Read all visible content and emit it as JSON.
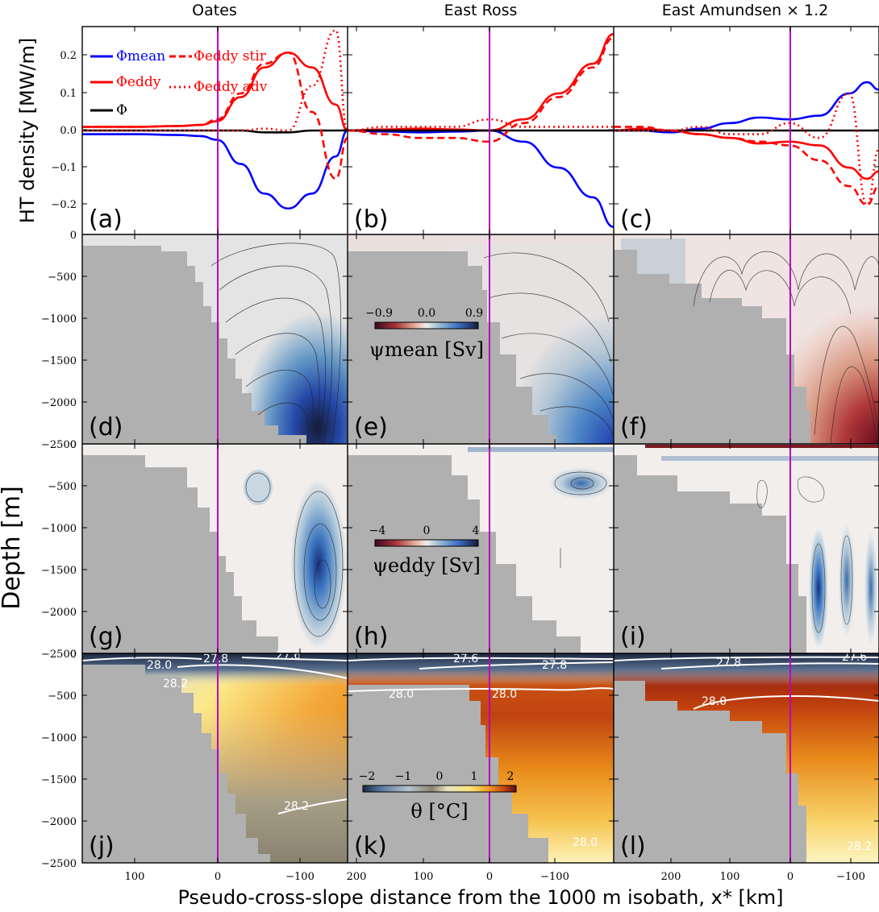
{
  "figure": {
    "col_titles": [
      "Oates",
      "East Ross",
      "East Amundsen × 1.2"
    ],
    "top_ylabel": "HT density [MW/m]",
    "depth_ylabel": "Depth [m]",
    "xlabel": "Pseudo-cross-slope distance from the 1000 m isobath, x* [km]",
    "panel_labels": [
      "(a)",
      "(b)",
      "(c)",
      "(d)",
      "(e)",
      "(f)",
      "(g)",
      "(h)",
      "(i)",
      "(j)",
      "(k)",
      "(l)"
    ],
    "top_yticks": [
      "0.2",
      "0.1",
      "0.0",
      "−0.1",
      "−0.2"
    ],
    "depth_yticks": [
      "0",
      "−500",
      "−1000",
      "−1500",
      "−2000",
      "−2500"
    ],
    "xticks_col1": [
      "100",
      "0",
      "−100"
    ],
    "xticks_col2": [
      "200",
      "100",
      "0",
      "−100"
    ],
    "xticks_col3": [
      "200",
      "100",
      "0",
      "−100"
    ],
    "legend": {
      "mean": "Φmean",
      "eddy": "Φeddy",
      "total": "Φ",
      "stir": "Φeddy stir",
      "adv": "Φeddy adv"
    },
    "colorbars": {
      "psi_mean": {
        "label": "ψmean [Sv]",
        "ticks": [
          "−0.9",
          "0.0",
          "0.9"
        ]
      },
      "psi_eddy": {
        "label": "ψeddy [Sv]",
        "ticks": [
          "−4",
          "0",
          "4"
        ]
      },
      "theta": {
        "label": "θ [°C]",
        "ticks": [
          "−2",
          "−1",
          "0",
          "1",
          "2"
        ]
      }
    },
    "isopycnals": {
      "j": [
        "27.8",
        "27.6",
        "28.0",
        "28.2",
        "28.2"
      ],
      "k": [
        "27.6",
        "27.8",
        "28.0",
        "28.0",
        "28.0"
      ],
      "l": [
        "27.8",
        "27.6",
        "28.0",
        "28.2"
      ]
    },
    "colors": {
      "mean": "#0000ff",
      "eddy": "#ff0000",
      "total": "#000000",
      "isobath": "#bb00bb",
      "bathy": "#b0b0b0"
    }
  },
  "chart_data": [
    {
      "type": "line",
      "panel": "a",
      "title": "Oates",
      "ylabel": "HT density [MW/m]",
      "xlim": [
        170,
        -165
      ],
      "ylim": [
        -0.28,
        0.28
      ],
      "x": [
        170,
        100,
        50,
        20,
        0,
        -30,
        -60,
        -90,
        -120,
        -150,
        -165
      ],
      "series": [
        {
          "name": "Φmean",
          "values": [
            -0.01,
            -0.01,
            -0.012,
            -0.015,
            -0.025,
            -0.09,
            -0.17,
            -0.21,
            -0.17,
            -0.07,
            -0.0
          ]
        },
        {
          "name": "Φeddy",
          "values": [
            0.01,
            0.01,
            0.012,
            0.015,
            0.025,
            0.09,
            0.17,
            0.21,
            0.17,
            0.07,
            0.0
          ]
        },
        {
          "name": "Φ",
          "values": [
            0.0,
            0.0,
            0.0,
            0.0,
            0.0,
            0.0,
            -0.005,
            -0.005,
            0.0,
            0.0,
            0.0
          ]
        },
        {
          "name": "Φeddy stir",
          "values": [
            0.01,
            0.01,
            0.012,
            0.015,
            0.03,
            0.1,
            0.18,
            0.21,
            0.05,
            -0.13,
            -0.02
          ]
        },
        {
          "name": "Φeddy adv",
          "values": [
            0.0,
            0.0,
            0.0,
            0.0,
            0.0,
            0.0,
            0.005,
            0.0,
            0.12,
            0.27,
            0.0
          ]
        }
      ]
    },
    {
      "type": "line",
      "panel": "b",
      "title": "East Ross",
      "xlim": [
        205,
        -180
      ],
      "ylim": [
        -0.28,
        0.28
      ],
      "x": [
        205,
        150,
        100,
        50,
        0,
        -50,
        -100,
        -150,
        -180
      ],
      "series": [
        {
          "name": "Φmean",
          "values": [
            0.0,
            -0.003,
            -0.005,
            -0.003,
            0.0,
            -0.03,
            -0.1,
            -0.18,
            -0.26
          ]
        },
        {
          "name": "Φeddy",
          "values": [
            0.0,
            0.003,
            0.005,
            0.003,
            0.0,
            0.03,
            0.1,
            0.18,
            0.26
          ]
        },
        {
          "name": "Φ",
          "values": [
            0.0,
            0.0,
            0.0,
            0.0,
            0.0,
            0.0,
            0.0,
            0.0,
            0.0
          ]
        },
        {
          "name": "Φeddy stir",
          "values": [
            0.0,
            -0.01,
            -0.02,
            -0.02,
            -0.03,
            0.02,
            0.09,
            0.17,
            0.25
          ]
        },
        {
          "name": "Φeddy adv",
          "values": [
            0.0,
            0.01,
            0.01,
            0.01,
            0.03,
            0.01,
            0.01,
            0.01,
            0.01
          ]
        }
      ]
    },
    {
      "type": "line",
      "panel": "c",
      "title": "East Amundsen × 1.2",
      "xlim": [
        295,
        -150
      ],
      "ylim": [
        -0.28,
        0.28
      ],
      "x": [
        295,
        250,
        200,
        150,
        100,
        50,
        0,
        -50,
        -100,
        -130,
        -150
      ],
      "series": [
        {
          "name": "Φmean",
          "values": [
            0.0,
            0.0,
            -0.005,
            0.005,
            0.02,
            0.035,
            0.03,
            0.04,
            0.1,
            0.13,
            0.11
          ]
        },
        {
          "name": "Φeddy",
          "values": [
            0.0,
            0.005,
            0.0,
            -0.01,
            -0.02,
            -0.035,
            -0.03,
            -0.04,
            -0.1,
            -0.13,
            -0.11
          ]
        },
        {
          "name": "Φ",
          "values": [
            0.0,
            0.0,
            0.0,
            0.0,
            0.0,
            0.0,
            0.0,
            0.0,
            0.0,
            0.0,
            0.0
          ]
        },
        {
          "name": "Φeddy stir",
          "values": [
            0.01,
            0.01,
            0.0,
            -0.01,
            -0.02,
            -0.03,
            -0.04,
            -0.08,
            -0.15,
            -0.2,
            -0.15
          ]
        },
        {
          "name": "Φeddy adv",
          "values": [
            0.0,
            0.0,
            0.0,
            0.01,
            -0.01,
            -0.01,
            0.02,
            -0.02,
            0.1,
            -0.2,
            -0.05
          ]
        }
      ]
    },
    {
      "type": "heatmap",
      "panel": "d-l",
      "ylabel": "Depth [m]",
      "xlabel": "Pseudo-cross-slope distance from the 1000 m isobath, x* [km]",
      "ylim": [
        -2500,
        0
      ],
      "rows": [
        "ψmean [Sv]",
        "ψeddy [Sv]",
        "θ [°C]"
      ],
      "colorbar_ranges": [
        [
          -0.9,
          0.9
        ],
        [
          -4,
          4
        ],
        [
          -2,
          2
        ]
      ]
    }
  ]
}
